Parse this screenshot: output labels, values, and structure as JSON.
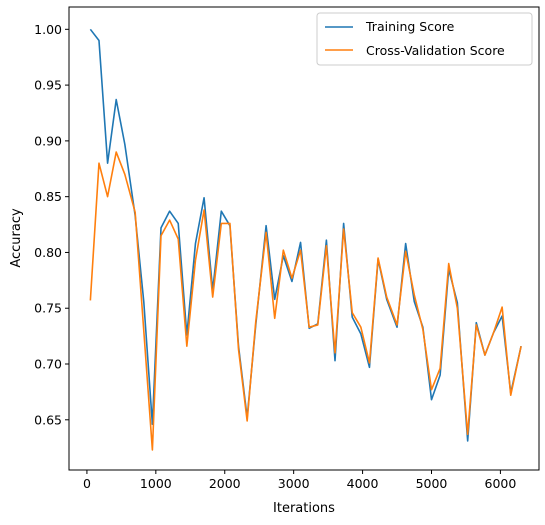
{
  "chart_data": {
    "type": "line",
    "title": "",
    "xlabel": "Iterations",
    "ylabel": "Accuracy",
    "xlim": [
      -260,
      6560
    ],
    "ylim": [
      0.605,
      1.02
    ],
    "xticks": [
      0,
      1000,
      2000,
      3000,
      4000,
      5000,
      6000
    ],
    "yticks": [
      0.65,
      0.7,
      0.75,
      0.8,
      0.85,
      0.9,
      0.95,
      1.0
    ],
    "xtick_labels": [
      "0",
      "1000",
      "2000",
      "3000",
      "4000",
      "5000",
      "6000"
    ],
    "ytick_labels": [
      "0.65",
      "0.70",
      "0.75",
      "0.80",
      "0.85",
      "0.90",
      "0.95",
      "1.00"
    ],
    "grid": false,
    "legend_position": "top-right",
    "x": [
      50,
      175,
      300,
      425,
      550,
      700,
      825,
      950,
      1075,
      1200,
      1325,
      1450,
      1575,
      1700,
      1825,
      1950,
      2075,
      2200,
      2325,
      2450,
      2600,
      2725,
      2850,
      2975,
      3100,
      3225,
      3350,
      3475,
      3600,
      3725,
      3850,
      3975,
      4100,
      4225,
      4350,
      4500,
      4625,
      4750,
      4875,
      5000,
      5125,
      5250,
      5375,
      5525,
      5650,
      5775,
      5900,
      6025,
      6150,
      6300
    ],
    "series": [
      {
        "name": "Training Score",
        "color": "#1f77b4",
        "values": [
          1.0,
          0.99,
          0.88,
          0.937,
          0.897,
          0.833,
          0.756,
          0.646,
          0.822,
          0.837,
          0.826,
          0.726,
          0.808,
          0.849,
          0.766,
          0.837,
          0.824,
          0.716,
          0.652,
          0.735,
          0.824,
          0.758,
          0.797,
          0.774,
          0.809,
          0.732,
          0.736,
          0.811,
          0.703,
          0.826,
          0.742,
          0.727,
          0.697,
          0.794,
          0.758,
          0.733,
          0.808,
          0.756,
          0.733,
          0.668,
          0.69,
          0.785,
          0.755,
          0.631,
          0.737,
          0.708,
          0.728,
          0.743,
          0.674,
          0.716
        ]
      },
      {
        "name": "Cross-Validation Score",
        "color": "#ff7f0e",
        "values": [
          0.757,
          0.88,
          0.85,
          0.89,
          0.87,
          0.836,
          0.73,
          0.623,
          0.815,
          0.829,
          0.812,
          0.716,
          0.793,
          0.838,
          0.76,
          0.826,
          0.826,
          0.713,
          0.649,
          0.738,
          0.818,
          0.741,
          0.802,
          0.777,
          0.802,
          0.733,
          0.735,
          0.806,
          0.71,
          0.821,
          0.746,
          0.733,
          0.701,
          0.795,
          0.76,
          0.735,
          0.801,
          0.762,
          0.731,
          0.677,
          0.696,
          0.79,
          0.75,
          0.637,
          0.735,
          0.708,
          0.728,
          0.751,
          0.672,
          0.716
        ]
      }
    ]
  }
}
